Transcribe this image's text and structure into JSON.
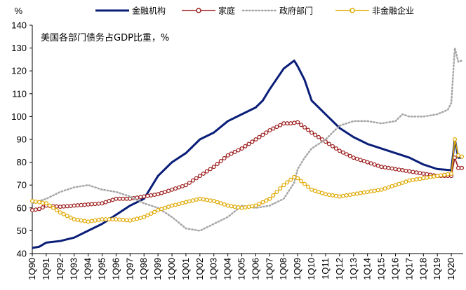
{
  "chart_data": {
    "type": "line",
    "title": "美国各部门债务占GDP比重，%",
    "y_unit": "%",
    "ylim": [
      40,
      140
    ],
    "y_ticks": [
      40,
      50,
      60,
      70,
      80,
      90,
      100,
      110,
      120,
      130,
      140
    ],
    "grid": false,
    "legend_position": "top",
    "x_tick_labels": [
      "1Q90",
      "1Q91",
      "1Q92",
      "1Q93",
      "1Q94",
      "1Q95",
      "1Q96",
      "1Q97",
      "1Q98",
      "1Q99",
      "1Q00",
      "1Q01",
      "1Q02",
      "1Q03",
      "1Q04",
      "1Q05",
      "1Q06",
      "1Q07",
      "1Q08",
      "1Q09",
      "1Q10",
      "1Q11",
      "1Q12",
      "1Q13",
      "1Q14",
      "1Q15",
      "1Q16",
      "1Q17",
      "1Q18",
      "1Q19",
      "1Q20"
    ],
    "series": [
      {
        "name": "金融机构",
        "color": "#0a1e78",
        "style": "solid",
        "points": [
          [
            1990,
            42.5
          ],
          [
            1990.5,
            43
          ],
          [
            1991,
            44.8
          ],
          [
            1992,
            45.5
          ],
          [
            1993,
            47
          ],
          [
            1994,
            50
          ],
          [
            1995,
            53
          ],
          [
            1996,
            57
          ],
          [
            1997,
            61
          ],
          [
            1998,
            64
          ],
          [
            1999,
            74
          ],
          [
            2000,
            80
          ],
          [
            2001,
            84
          ],
          [
            2002,
            90
          ],
          [
            2003,
            93
          ],
          [
            2004,
            98
          ],
          [
            2005,
            101
          ],
          [
            2006,
            104
          ],
          [
            2006.5,
            107
          ],
          [
            2007,
            112
          ],
          [
            2008,
            121
          ],
          [
            2008.75,
            124.5
          ],
          [
            2009,
            122
          ],
          [
            2009.5,
            116
          ],
          [
            2010,
            107
          ],
          [
            2011,
            101
          ],
          [
            2012,
            95
          ],
          [
            2013,
            91
          ],
          [
            2014,
            88
          ],
          [
            2015,
            86
          ],
          [
            2016,
            84
          ],
          [
            2017,
            82
          ],
          [
            2018,
            79
          ],
          [
            2019,
            77
          ],
          [
            2020,
            76.5
          ],
          [
            2020.25,
            90
          ],
          [
            2020.5,
            82
          ],
          [
            2020.75,
            82
          ]
        ]
      },
      {
        "name": "家庭",
        "color": "#9b1c1c",
        "style": "circle-markers",
        "points": [
          [
            1990,
            59
          ],
          [
            1990.5,
            59.5
          ],
          [
            1991,
            61
          ],
          [
            1992,
            60.5
          ],
          [
            1993,
            61
          ],
          [
            1994,
            61.5
          ],
          [
            1995,
            62
          ],
          [
            1996,
            64
          ],
          [
            1997,
            64
          ],
          [
            1998,
            65
          ],
          [
            1999,
            66
          ],
          [
            2000,
            68
          ],
          [
            2001,
            70
          ],
          [
            2002,
            74
          ],
          [
            2003,
            78
          ],
          [
            2004,
            83
          ],
          [
            2005,
            86
          ],
          [
            2006,
            90
          ],
          [
            2007,
            94
          ],
          [
            2008,
            97
          ],
          [
            2008.5,
            97
          ],
          [
            2009,
            97.5
          ],
          [
            2010,
            93
          ],
          [
            2011,
            89
          ],
          [
            2012,
            85
          ],
          [
            2013,
            82
          ],
          [
            2014,
            80
          ],
          [
            2015,
            78
          ],
          [
            2016,
            77
          ],
          [
            2017,
            76
          ],
          [
            2018,
            75
          ],
          [
            2019,
            74
          ],
          [
            2020,
            74
          ],
          [
            2020.25,
            82
          ],
          [
            2020.5,
            77.5
          ],
          [
            2020.75,
            77.5
          ]
        ]
      },
      {
        "name": "政府部门",
        "color": "#a6a6a6",
        "style": "dotted",
        "points": [
          [
            1990,
            62
          ],
          [
            1990.5,
            63
          ],
          [
            1991,
            64
          ],
          [
            1992,
            67
          ],
          [
            1993,
            69
          ],
          [
            1994,
            70
          ],
          [
            1995,
            68
          ],
          [
            1996,
            67
          ],
          [
            1997,
            65
          ],
          [
            1998,
            62
          ],
          [
            1999,
            60
          ],
          [
            2000,
            56
          ],
          [
            2001,
            51
          ],
          [
            2002,
            50
          ],
          [
            2003,
            53
          ],
          [
            2004,
            56
          ],
          [
            2005,
            61
          ],
          [
            2006,
            60
          ],
          [
            2007,
            61
          ],
          [
            2008,
            64
          ],
          [
            2008.75,
            71
          ],
          [
            2009,
            77
          ],
          [
            2009.5,
            82
          ],
          [
            2010,
            86
          ],
          [
            2011,
            90
          ],
          [
            2012,
            96
          ],
          [
            2013,
            98
          ],
          [
            2014,
            98
          ],
          [
            2015,
            97
          ],
          [
            2016,
            98
          ],
          [
            2016.5,
            101
          ],
          [
            2017,
            100
          ],
          [
            2018,
            100
          ],
          [
            2019,
            101
          ],
          [
            2019.75,
            103
          ],
          [
            2020,
            106
          ],
          [
            2020.25,
            130
          ],
          [
            2020.5,
            124
          ],
          [
            2020.75,
            124.5
          ]
        ]
      },
      {
        "name": "非金融企业",
        "color": "#e0a800",
        "style": "circle-markers",
        "points": [
          [
            1990,
            63
          ],
          [
            1990.5,
            62.5
          ],
          [
            1991,
            62
          ],
          [
            1992,
            58
          ],
          [
            1993,
            55
          ],
          [
            1994,
            54
          ],
          [
            1995,
            55
          ],
          [
            1996,
            55
          ],
          [
            1997,
            54.5
          ],
          [
            1998,
            56
          ],
          [
            1999,
            59
          ],
          [
            2000,
            61
          ],
          [
            2001,
            62.5
          ],
          [
            2002,
            64
          ],
          [
            2003,
            63
          ],
          [
            2004,
            61
          ],
          [
            2005,
            60
          ],
          [
            2006,
            61
          ],
          [
            2007,
            64
          ],
          [
            2008,
            70
          ],
          [
            2008.75,
            73.5
          ],
          [
            2009,
            73
          ],
          [
            2010,
            68
          ],
          [
            2011,
            66
          ],
          [
            2012,
            65
          ],
          [
            2013,
            66
          ],
          [
            2014,
            67
          ],
          [
            2015,
            68
          ],
          [
            2016,
            70
          ],
          [
            2017,
            72
          ],
          [
            2018,
            73
          ],
          [
            2019,
            74
          ],
          [
            2020,
            75
          ],
          [
            2020.25,
            90
          ],
          [
            2020.5,
            83
          ],
          [
            2020.75,
            82.5
          ]
        ]
      }
    ]
  }
}
